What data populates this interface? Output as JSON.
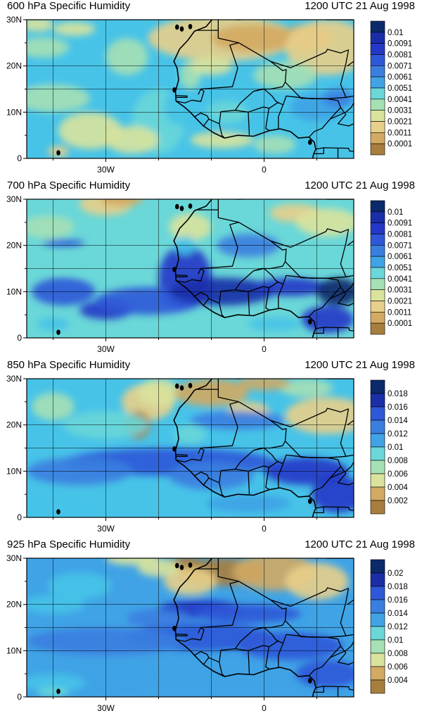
{
  "panels": [
    {
      "title": "600 hPa Specific Humidity",
      "time": "1200 UTC 21 Aug 1998",
      "levels": [
        "0.01",
        "0.0091",
        "0.0081",
        "0.0071",
        "0.0061",
        "0.0051",
        "0.0041",
        "0.0031",
        "0.0021",
        "0.0011",
        "0.0001"
      ],
      "lat_labels": [
        "30N",
        "20N",
        "10N",
        "0"
      ],
      "lon_labels": [
        "30W",
        "0"
      ]
    },
    {
      "title": "700 hPa Specific Humidity",
      "time": "1200 UTC 21 Aug 1998",
      "levels": [
        "0.01",
        "0.0091",
        "0.0081",
        "0.0071",
        "0.0061",
        "0.0051",
        "0.0041",
        "0.0031",
        "0.0021",
        "0.0011",
        "0.0001"
      ],
      "lat_labels": [
        "30N",
        "20N",
        "10N",
        "0"
      ],
      "lon_labels": [
        "30W",
        "0"
      ]
    },
    {
      "title": "850 hPa Specific Humidity",
      "time": "1200 UTC 21 Aug 1998",
      "levels": [
        "0.018",
        "0.016",
        "0.014",
        "0.012",
        "0.01",
        "0.008",
        "0.006",
        "0.004",
        "0.002"
      ],
      "lat_labels": [
        "30N",
        "20N",
        "10N",
        "0"
      ],
      "lon_labels": [
        "30W",
        "0"
      ]
    },
    {
      "title": "925 hPa Specific Humidity",
      "time": "1200 UTC 21 Aug 1998",
      "levels": [
        "0.02",
        "0.018",
        "0.016",
        "0.014",
        "0.012",
        "0.01",
        "0.008",
        "0.006",
        "0.004"
      ],
      "lat_labels": [
        "30N",
        "20N",
        "10N",
        "0"
      ],
      "lon_labels": [
        "30W",
        "0"
      ]
    }
  ],
  "colors": {
    "scale": [
      "#0b2a6b",
      "#1a2ea8",
      "#2438c7",
      "#2f58d8",
      "#3a7ee0",
      "#3fa3e6",
      "#47c3e8",
      "#6ad7d8",
      "#a6e0b5",
      "#d9e39c",
      "#e8cf8a",
      "#d2aa63",
      "#a87e3e"
    ]
  }
}
